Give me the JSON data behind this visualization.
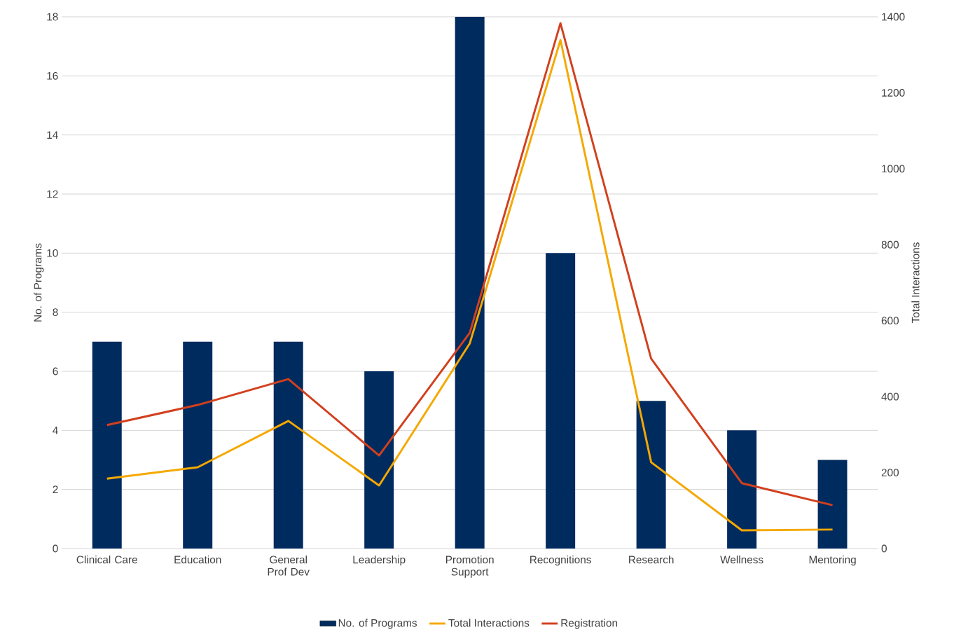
{
  "chart_data": {
    "type": "bar",
    "ylabel": "No. of Programs",
    "y2label": "Total Interactions",
    "categories": [
      "Clinical Care",
      "Education",
      "General Prof Dev",
      "Leadership",
      "Promotion Support",
      "Recognitions",
      "Research",
      "Wellness",
      "Mentoring"
    ],
    "series": [
      {
        "name": "No. of Programs",
        "color": "#002b5f",
        "values": [
          7,
          7,
          7,
          6,
          18,
          10,
          5,
          4,
          3
        ]
      },
      {
        "name": "Total Interactions",
        "type": "line",
        "axis": "y2",
        "color": "#f5a800",
        "values": [
          184,
          214,
          336,
          166,
          540,
          1339,
          227,
          48,
          50
        ]
      },
      {
        "name": "Registration",
        "type": "line",
        "axis": "y2",
        "color": "#d2401e",
        "values": [
          325,
          378,
          446,
          245,
          568,
          1383,
          500,
          172,
          114
        ]
      }
    ],
    "ylim": [
      0,
      18
    ],
    "yticks": [
      0,
      2,
      4,
      6,
      8,
      10,
      12,
      14,
      16,
      18
    ],
    "y2lim": [
      0,
      1400
    ],
    "y2ticks": [
      0,
      200,
      400,
      600,
      800,
      1000,
      1200,
      1400
    ],
    "grid": "y",
    "legend": "bottom"
  }
}
